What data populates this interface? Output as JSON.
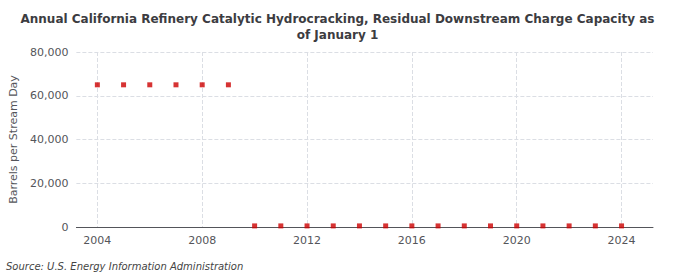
{
  "chart_data": {
    "type": "scatter",
    "title": "Annual California Refinery Catalytic Hydrocracking, Residual Downstream Charge Capacity as\nof January 1",
    "ylabel": "Barrels per Stream Day",
    "annotations": [
      "Source: U.S. Energy Information Administration"
    ],
    "x": [
      2004,
      2005,
      2006,
      2007,
      2008,
      2009,
      2010,
      2011,
      2012,
      2013,
      2014,
      2015,
      2016,
      2017,
      2018,
      2019,
      2020,
      2021,
      2022,
      2023,
      2024
    ],
    "values": [
      65000,
      65000,
      65000,
      65000,
      65000,
      65000,
      500,
      500,
      500,
      500,
      500,
      500,
      500,
      500,
      500,
      500,
      500,
      500,
      500,
      500,
      500
    ],
    "color": "#cc0000",
    "marker": "square",
    "xlim": [
      2003.2,
      2025.2
    ],
    "xticks": [
      2004,
      2008,
      2012,
      2016,
      2020,
      2024
    ],
    "ylim": [
      0,
      80000
    ],
    "yticks": [
      0,
      {
        "value": 20000,
        "label": "20,000"
      },
      {
        "value": 40000,
        "label": "40,000"
      },
      {
        "value": 60000,
        "label": "60,000"
      },
      {
        "value": 80000,
        "label": "80,000"
      }
    ],
    "grid": true
  }
}
